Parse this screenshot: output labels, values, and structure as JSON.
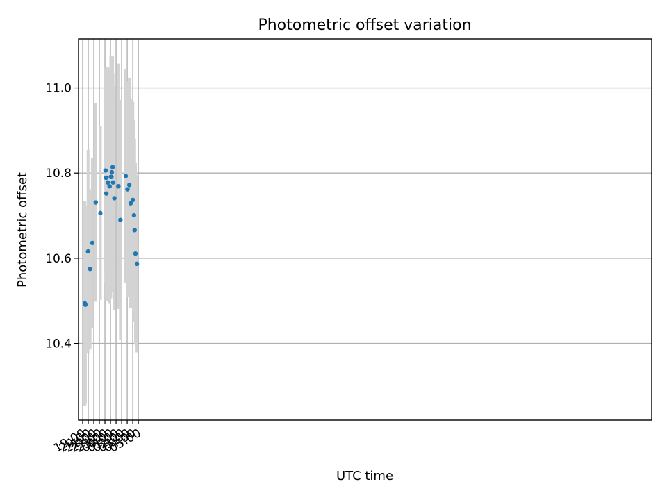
{
  "chart_data": {
    "type": "scatter",
    "title": "Photometric offset variation",
    "xlabel": "UTC time",
    "ylabel": "Photometric offset",
    "x_ticks": [
      "19:00",
      "20:00",
      "21:00",
      "22:00",
      "23:00",
      "00:00",
      "01:00",
      "02:00",
      "03:00",
      "04:00",
      "05:00"
    ],
    "y_ticks": [
      "10.4",
      "10.6",
      "10.8",
      "11.0"
    ],
    "y_tick_values": [
      10.4,
      10.6,
      10.8,
      11.0
    ],
    "xlim": [
      "19:00",
      "05:15"
    ],
    "ylim": [
      10.22,
      11.115
    ],
    "grid": true,
    "error_bar_color": "#d3d3d3",
    "marker_color": "#1f77b4",
    "points": [
      {
        "time": "19:23",
        "y": 10.494,
        "err": 0.24
      },
      {
        "time": "19:29",
        "y": 10.491,
        "err": 0.233
      },
      {
        "time": "19:58",
        "y": 10.616,
        "err": 0.238
      },
      {
        "time": "20:20",
        "y": 10.575,
        "err": 0.187
      },
      {
        "time": "20:44",
        "y": 10.636,
        "err": 0.2
      },
      {
        "time": "21:21",
        "y": 10.731,
        "err": 0.233
      },
      {
        "time": "22:11",
        "y": 10.706,
        "err": 0.204
      },
      {
        "time": "23:06",
        "y": 10.806,
        "err": 0.24
      },
      {
        "time": "23:12",
        "y": 10.789,
        "err": 0.247
      },
      {
        "time": "23:15",
        "y": 10.752,
        "err": 0.253
      },
      {
        "time": "23:31",
        "y": 10.778,
        "err": 0.27
      },
      {
        "time": "23:50",
        "y": 10.769,
        "err": 0.276
      },
      {
        "time": "00:03",
        "y": 10.791,
        "err": 0.285
      },
      {
        "time": "00:10",
        "y": 10.791,
        "err": 0.24
      },
      {
        "time": "00:14",
        "y": 10.802,
        "err": 0.24
      },
      {
        "time": "00:23",
        "y": 10.814,
        "err": 0.26
      },
      {
        "time": "00:27",
        "y": 10.778,
        "err": 0.257
      },
      {
        "time": "00:42",
        "y": 10.741,
        "err": 0.262
      },
      {
        "time": "01:25",
        "y": 10.769,
        "err": 0.288
      },
      {
        "time": "01:47",
        "y": 10.69,
        "err": 0.282
      },
      {
        "time": "02:44",
        "y": 10.793,
        "err": 0.25
      },
      {
        "time": "03:03",
        "y": 10.762,
        "err": 0.253
      },
      {
        "time": "03:23",
        "y": 10.772,
        "err": 0.252
      },
      {
        "time": "03:37",
        "y": 10.729,
        "err": 0.245
      },
      {
        "time": "04:01",
        "y": 10.737,
        "err": 0.23
      },
      {
        "time": "04:13",
        "y": 10.701,
        "err": 0.223
      },
      {
        "time": "04:20",
        "y": 10.666,
        "err": 0.214
      },
      {
        "time": "04:29",
        "y": 10.611,
        "err": 0.214
      },
      {
        "time": "04:45",
        "y": 10.587,
        "err": 0.208
      }
    ]
  }
}
